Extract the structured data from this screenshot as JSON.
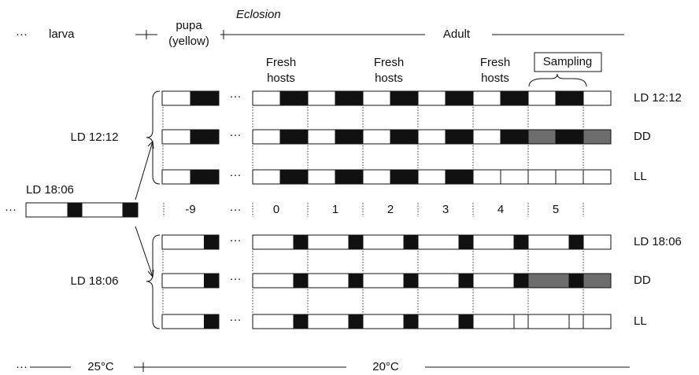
{
  "ellipsis": "···",
  "stages": {
    "larva": "larva",
    "pupa": [
      "pupa",
      "(yellow)"
    ],
    "eclosion": "Eclosion",
    "adult": "Adult"
  },
  "events": {
    "fresh_hosts": [
      [
        "Fresh",
        "hosts"
      ],
      [
        "Fresh",
        "hosts"
      ],
      [
        "Fresh",
        "hosts"
      ]
    ],
    "sampling": "Sampling"
  },
  "entrainment": "LD 18:06",
  "groups": [
    {
      "label": "LD 12:12",
      "rows": [
        "LD 12:12",
        "DD",
        "LL"
      ]
    },
    {
      "label": "LD 18:06",
      "rows": [
        "LD 18:06",
        "DD",
        "LL"
      ]
    }
  ],
  "days": [
    "-9",
    "0",
    "1",
    "2",
    "3",
    "4",
    "5"
  ],
  "temperature": [
    "25°C",
    "20°C"
  ]
}
